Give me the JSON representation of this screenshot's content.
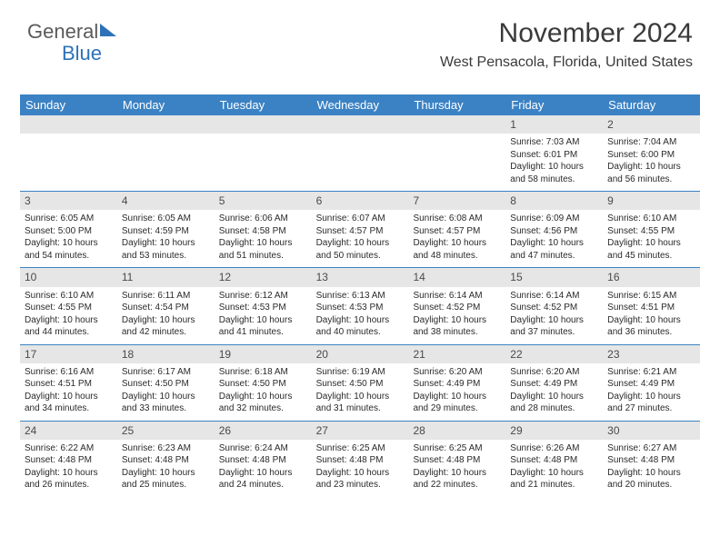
{
  "logo": {
    "part1": "General",
    "part2": "Blue"
  },
  "title": {
    "month": "November 2024",
    "location": "West Pensacola, Florida, United States"
  },
  "colors": {
    "header_bg": "#3b82c4",
    "header_text": "#ffffff",
    "strip_bg": "#e6e6e6",
    "rule": "#3b82c4",
    "logo_gray": "#5a5a5a",
    "logo_blue": "#2d72b8"
  },
  "weekdays": [
    "Sunday",
    "Monday",
    "Tuesday",
    "Wednesday",
    "Thursday",
    "Friday",
    "Saturday"
  ],
  "weeks": [
    [
      {
        "num": "",
        "lines": []
      },
      {
        "num": "",
        "lines": []
      },
      {
        "num": "",
        "lines": []
      },
      {
        "num": "",
        "lines": []
      },
      {
        "num": "",
        "lines": []
      },
      {
        "num": "1",
        "lines": [
          "Sunrise: 7:03 AM",
          "Sunset: 6:01 PM",
          "Daylight: 10 hours",
          "and 58 minutes."
        ]
      },
      {
        "num": "2",
        "lines": [
          "Sunrise: 7:04 AM",
          "Sunset: 6:00 PM",
          "Daylight: 10 hours",
          "and 56 minutes."
        ]
      }
    ],
    [
      {
        "num": "3",
        "lines": [
          "Sunrise: 6:05 AM",
          "Sunset: 5:00 PM",
          "Daylight: 10 hours",
          "and 54 minutes."
        ]
      },
      {
        "num": "4",
        "lines": [
          "Sunrise: 6:05 AM",
          "Sunset: 4:59 PM",
          "Daylight: 10 hours",
          "and 53 minutes."
        ]
      },
      {
        "num": "5",
        "lines": [
          "Sunrise: 6:06 AM",
          "Sunset: 4:58 PM",
          "Daylight: 10 hours",
          "and 51 minutes."
        ]
      },
      {
        "num": "6",
        "lines": [
          "Sunrise: 6:07 AM",
          "Sunset: 4:57 PM",
          "Daylight: 10 hours",
          "and 50 minutes."
        ]
      },
      {
        "num": "7",
        "lines": [
          "Sunrise: 6:08 AM",
          "Sunset: 4:57 PM",
          "Daylight: 10 hours",
          "and 48 minutes."
        ]
      },
      {
        "num": "8",
        "lines": [
          "Sunrise: 6:09 AM",
          "Sunset: 4:56 PM",
          "Daylight: 10 hours",
          "and 47 minutes."
        ]
      },
      {
        "num": "9",
        "lines": [
          "Sunrise: 6:10 AM",
          "Sunset: 4:55 PM",
          "Daylight: 10 hours",
          "and 45 minutes."
        ]
      }
    ],
    [
      {
        "num": "10",
        "lines": [
          "Sunrise: 6:10 AM",
          "Sunset: 4:55 PM",
          "Daylight: 10 hours",
          "and 44 minutes."
        ]
      },
      {
        "num": "11",
        "lines": [
          "Sunrise: 6:11 AM",
          "Sunset: 4:54 PM",
          "Daylight: 10 hours",
          "and 42 minutes."
        ]
      },
      {
        "num": "12",
        "lines": [
          "Sunrise: 6:12 AM",
          "Sunset: 4:53 PM",
          "Daylight: 10 hours",
          "and 41 minutes."
        ]
      },
      {
        "num": "13",
        "lines": [
          "Sunrise: 6:13 AM",
          "Sunset: 4:53 PM",
          "Daylight: 10 hours",
          "and 40 minutes."
        ]
      },
      {
        "num": "14",
        "lines": [
          "Sunrise: 6:14 AM",
          "Sunset: 4:52 PM",
          "Daylight: 10 hours",
          "and 38 minutes."
        ]
      },
      {
        "num": "15",
        "lines": [
          "Sunrise: 6:14 AM",
          "Sunset: 4:52 PM",
          "Daylight: 10 hours",
          "and 37 minutes."
        ]
      },
      {
        "num": "16",
        "lines": [
          "Sunrise: 6:15 AM",
          "Sunset: 4:51 PM",
          "Daylight: 10 hours",
          "and 36 minutes."
        ]
      }
    ],
    [
      {
        "num": "17",
        "lines": [
          "Sunrise: 6:16 AM",
          "Sunset: 4:51 PM",
          "Daylight: 10 hours",
          "and 34 minutes."
        ]
      },
      {
        "num": "18",
        "lines": [
          "Sunrise: 6:17 AM",
          "Sunset: 4:50 PM",
          "Daylight: 10 hours",
          "and 33 minutes."
        ]
      },
      {
        "num": "19",
        "lines": [
          "Sunrise: 6:18 AM",
          "Sunset: 4:50 PM",
          "Daylight: 10 hours",
          "and 32 minutes."
        ]
      },
      {
        "num": "20",
        "lines": [
          "Sunrise: 6:19 AM",
          "Sunset: 4:50 PM",
          "Daylight: 10 hours",
          "and 31 minutes."
        ]
      },
      {
        "num": "21",
        "lines": [
          "Sunrise: 6:20 AM",
          "Sunset: 4:49 PM",
          "Daylight: 10 hours",
          "and 29 minutes."
        ]
      },
      {
        "num": "22",
        "lines": [
          "Sunrise: 6:20 AM",
          "Sunset: 4:49 PM",
          "Daylight: 10 hours",
          "and 28 minutes."
        ]
      },
      {
        "num": "23",
        "lines": [
          "Sunrise: 6:21 AM",
          "Sunset: 4:49 PM",
          "Daylight: 10 hours",
          "and 27 minutes."
        ]
      }
    ],
    [
      {
        "num": "24",
        "lines": [
          "Sunrise: 6:22 AM",
          "Sunset: 4:48 PM",
          "Daylight: 10 hours",
          "and 26 minutes."
        ]
      },
      {
        "num": "25",
        "lines": [
          "Sunrise: 6:23 AM",
          "Sunset: 4:48 PM",
          "Daylight: 10 hours",
          "and 25 minutes."
        ]
      },
      {
        "num": "26",
        "lines": [
          "Sunrise: 6:24 AM",
          "Sunset: 4:48 PM",
          "Daylight: 10 hours",
          "and 24 minutes."
        ]
      },
      {
        "num": "27",
        "lines": [
          "Sunrise: 6:25 AM",
          "Sunset: 4:48 PM",
          "Daylight: 10 hours",
          "and 23 minutes."
        ]
      },
      {
        "num": "28",
        "lines": [
          "Sunrise: 6:25 AM",
          "Sunset: 4:48 PM",
          "Daylight: 10 hours",
          "and 22 minutes."
        ]
      },
      {
        "num": "29",
        "lines": [
          "Sunrise: 6:26 AM",
          "Sunset: 4:48 PM",
          "Daylight: 10 hours",
          "and 21 minutes."
        ]
      },
      {
        "num": "30",
        "lines": [
          "Sunrise: 6:27 AM",
          "Sunset: 4:48 PM",
          "Daylight: 10 hours",
          "and 20 minutes."
        ]
      }
    ]
  ]
}
